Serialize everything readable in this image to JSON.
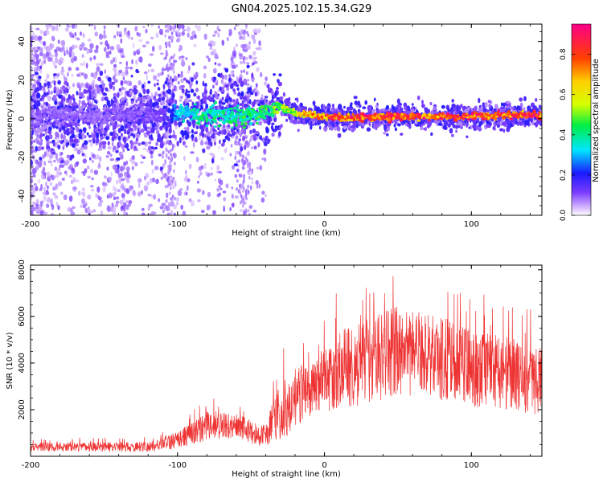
{
  "title": "GN04.2025.102.15.34.G29",
  "chart_data": [
    {
      "type": "heatmap",
      "xlabel": "Height of straight line (km)",
      "ylabel": "Frequency (Hz)",
      "xlim": [
        -200,
        148
      ],
      "ylim": [
        -50,
        49
      ],
      "x_ticks": [
        "-200",
        "-100",
        "0",
        "100"
      ],
      "y_ticks": [
        "-40",
        "-20",
        "0",
        "20",
        "40"
      ],
      "colorbar": {
        "label": "Normalized spectral amplitude",
        "range": [
          0,
          0.95
        ],
        "ticks": [
          "0.0",
          "0.2",
          "0.4",
          "0.6",
          "0.8"
        ]
      },
      "ridge": {
        "x": [
          -200,
          -150,
          -110,
          -100,
          -80,
          -60,
          -40,
          -30,
          -20,
          0,
          20,
          50,
          80,
          100,
          148
        ],
        "frequency": [
          2,
          1,
          2,
          3,
          2,
          1,
          3,
          6,
          3,
          1,
          0.5,
          1,
          1,
          1.5,
          2
        ],
        "amplitude": [
          0.1,
          0.1,
          0.12,
          0.35,
          0.45,
          0.45,
          0.5,
          0.55,
          0.65,
          0.85,
          0.9,
          0.9,
          0.9,
          0.92,
          0.92
        ]
      }
    },
    {
      "type": "line",
      "xlabel": "Height of straight line (km)",
      "ylabel": "SNR (10 * v/v)",
      "xlim": [
        -200,
        148
      ],
      "ylim": [
        0,
        8200
      ],
      "x_ticks": [
        "-200",
        "-100",
        "0",
        "100"
      ],
      "y_ticks": [
        "2000",
        "4000",
        "6000",
        "8000"
      ],
      "color": "#ee3333",
      "envelope": {
        "x": [
          -200,
          -120,
          -100,
          -80,
          -70,
          -55,
          -45,
          -40,
          -35,
          -30,
          -25,
          -15,
          -10,
          0,
          10,
          15,
          20,
          30,
          40,
          50,
          60,
          70,
          80,
          90,
          100,
          110,
          120,
          130,
          140,
          148
        ],
        "mean": [
          400,
          400,
          700,
          1300,
          1400,
          1200,
          900,
          900,
          1500,
          2000,
          2200,
          2700,
          2600,
          3300,
          3800,
          4000,
          3900,
          4100,
          4300,
          4500,
          4400,
          4300,
          4200,
          4000,
          3800,
          3700,
          3600,
          3500,
          3300,
          3200
        ],
        "spread": [
          200,
          250,
          400,
          700,
          700,
          600,
          500,
          500,
          1000,
          1400,
          1500,
          1400,
          1300,
          1600,
          1900,
          2000,
          2000,
          2100,
          2100,
          2200,
          2100,
          2000,
          2000,
          1900,
          1900,
          1800,
          1800,
          1700,
          1700,
          1600
        ]
      }
    }
  ]
}
